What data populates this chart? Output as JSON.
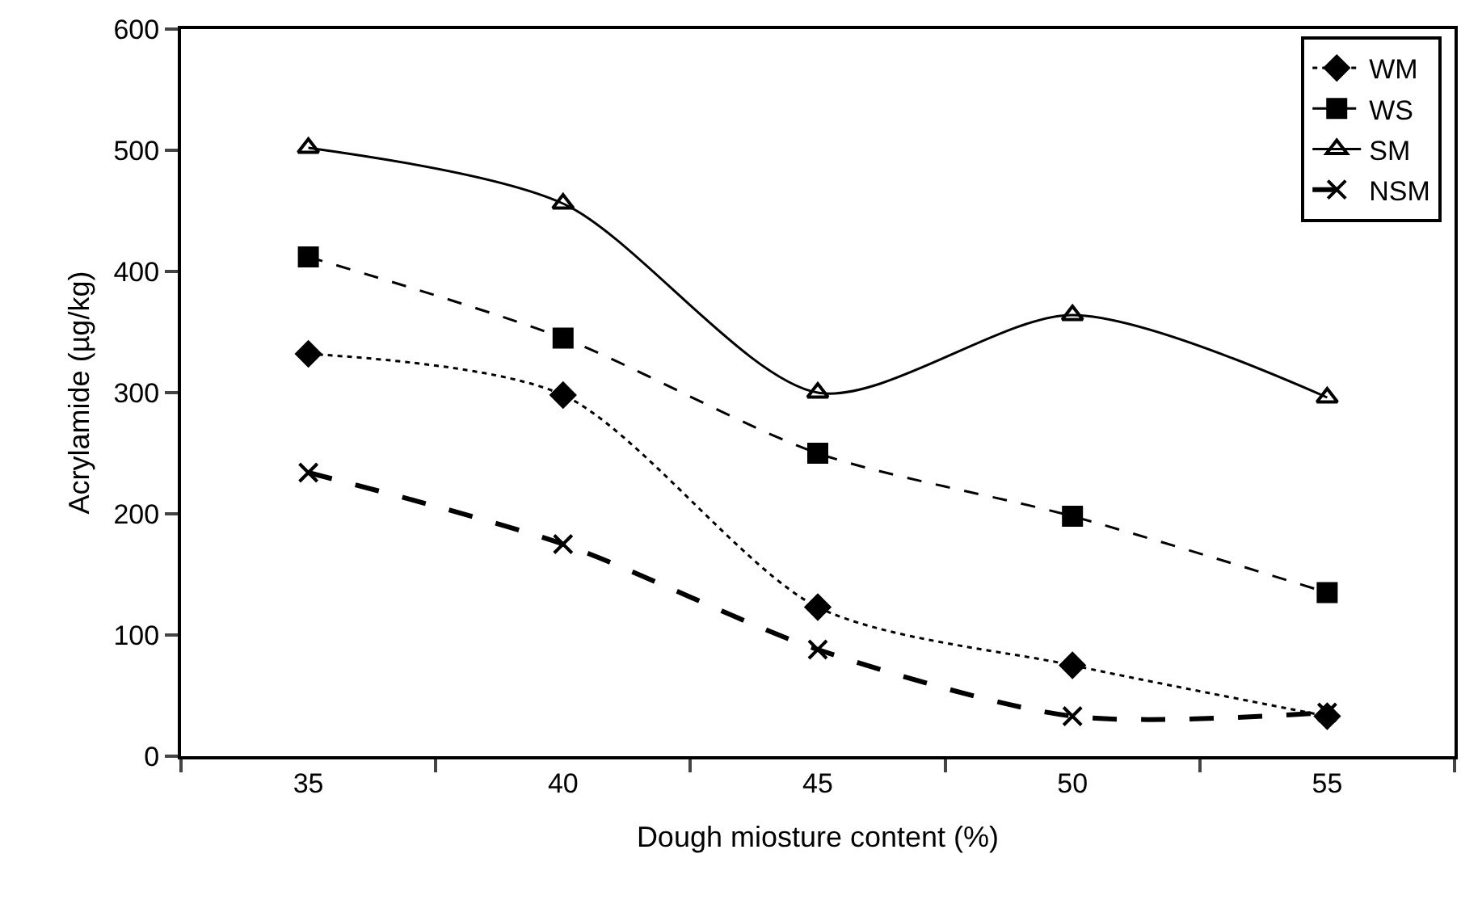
{
  "chart_data": {
    "type": "line",
    "xlabel": "Dough miosture content (%)",
    "ylabel": "Acrylamide (µg/kg)",
    "categories": [
      "35",
      "40",
      "45",
      "50",
      "55"
    ],
    "ylim": [
      0,
      600
    ],
    "yticks": [
      0,
      100,
      200,
      300,
      400,
      500,
      600
    ],
    "grid": false,
    "legend": "top right",
    "series": [
      {
        "name": "WM",
        "color": "#000000",
        "marker": "diamond",
        "line_style": "dotted",
        "values": [
          332,
          298,
          123,
          75,
          33
        ]
      },
      {
        "name": "WS",
        "color": "#000000",
        "marker": "square",
        "line_style": "dashed",
        "values": [
          412,
          345,
          250,
          198,
          135
        ]
      },
      {
        "name": "SM",
        "color": "#000000",
        "marker": "triangle",
        "line_style": "solid",
        "values": [
          502,
          456,
          300,
          364,
          296
        ]
      },
      {
        "name": "NSM",
        "color": "#000000",
        "marker": "cross",
        "line_style": "longdash",
        "values": [
          234,
          175,
          88,
          33,
          36
        ]
      }
    ]
  }
}
